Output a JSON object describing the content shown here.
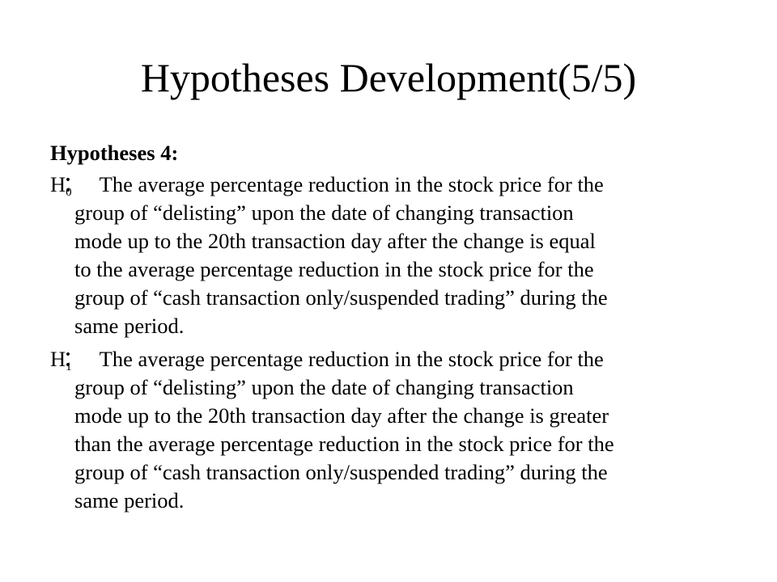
{
  "slide": {
    "title": "Hypotheses Development(5/5)",
    "heading": "Hypotheses 4:",
    "colon": "：",
    "hypotheses": [
      {
        "symbol": "H",
        "subscript": "0",
        "lines": [
          "The average percentage reduction in the stock price for the",
          "group of “delisting” upon the date of changing transaction",
          "mode up to the 20th transaction day after the change is equal",
          "to the average percentage reduction in the stock price for the",
          "group of “cash transaction only/suspended trading” during the",
          "same period."
        ]
      },
      {
        "symbol": "H",
        "subscript": "1",
        "lines": [
          "The average percentage reduction in the stock price for the",
          "group of “delisting” upon the date of changing transaction",
          "mode up to the 20th transaction day after the change is greater",
          "than the average percentage reduction in the stock price for the",
          "group of “cash transaction only/suspended trading” during the",
          "same period."
        ]
      }
    ]
  }
}
